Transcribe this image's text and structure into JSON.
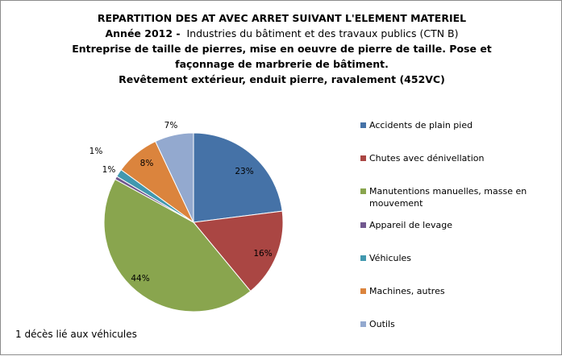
{
  "title": {
    "line1": "REPARTITION DES AT AVEC ARRET SUIVANT L'ELEMENT MATERIEL",
    "line2_bold": "Année 2012  -",
    "line2_normal": "Industries  du bâtiment et des travaux publics (CTN  B)",
    "line3": "Entreprise de taille de pierres, mise en oeuvre de pierre de taille. Pose et",
    "line4": "façonnage de marbrerie de bâtiment.",
    "line5": "Revêtement extérieur, enduit pierre, ravalement (452VC)"
  },
  "chart_data": {
    "type": "pie",
    "categories": [
      "Accidents de plain pied",
      "Chutes avec dénivellation",
      "Manutentions manuelles, masse en mouvement",
      "Appareil de levage",
      "Véhicules",
      "Machines, autres",
      "Outils"
    ],
    "legend_lines": [
      [
        "Accidents de plain pied"
      ],
      [
        "Chutes avec dénivellation"
      ],
      [
        "Manutentions manuelles, masse en",
        "mouvement"
      ],
      [
        "Appareil de levage"
      ],
      [
        "Véhicules"
      ],
      [
        "Machines, autres"
      ],
      [
        "Outils"
      ]
    ],
    "values": [
      23,
      16,
      44,
      0.6,
      1.4,
      8,
      7
    ],
    "data_labels": [
      "23%",
      "16%",
      "44%",
      "1%",
      "1%",
      "8%",
      "7%"
    ],
    "colors": [
      "#4572a7",
      "#aa4643",
      "#89a54e",
      "#71588f",
      "#4198af",
      "#db843d",
      "#93a9cf"
    ],
    "legend_position": "right"
  },
  "footnote": "1 décès lié aux véhicules"
}
